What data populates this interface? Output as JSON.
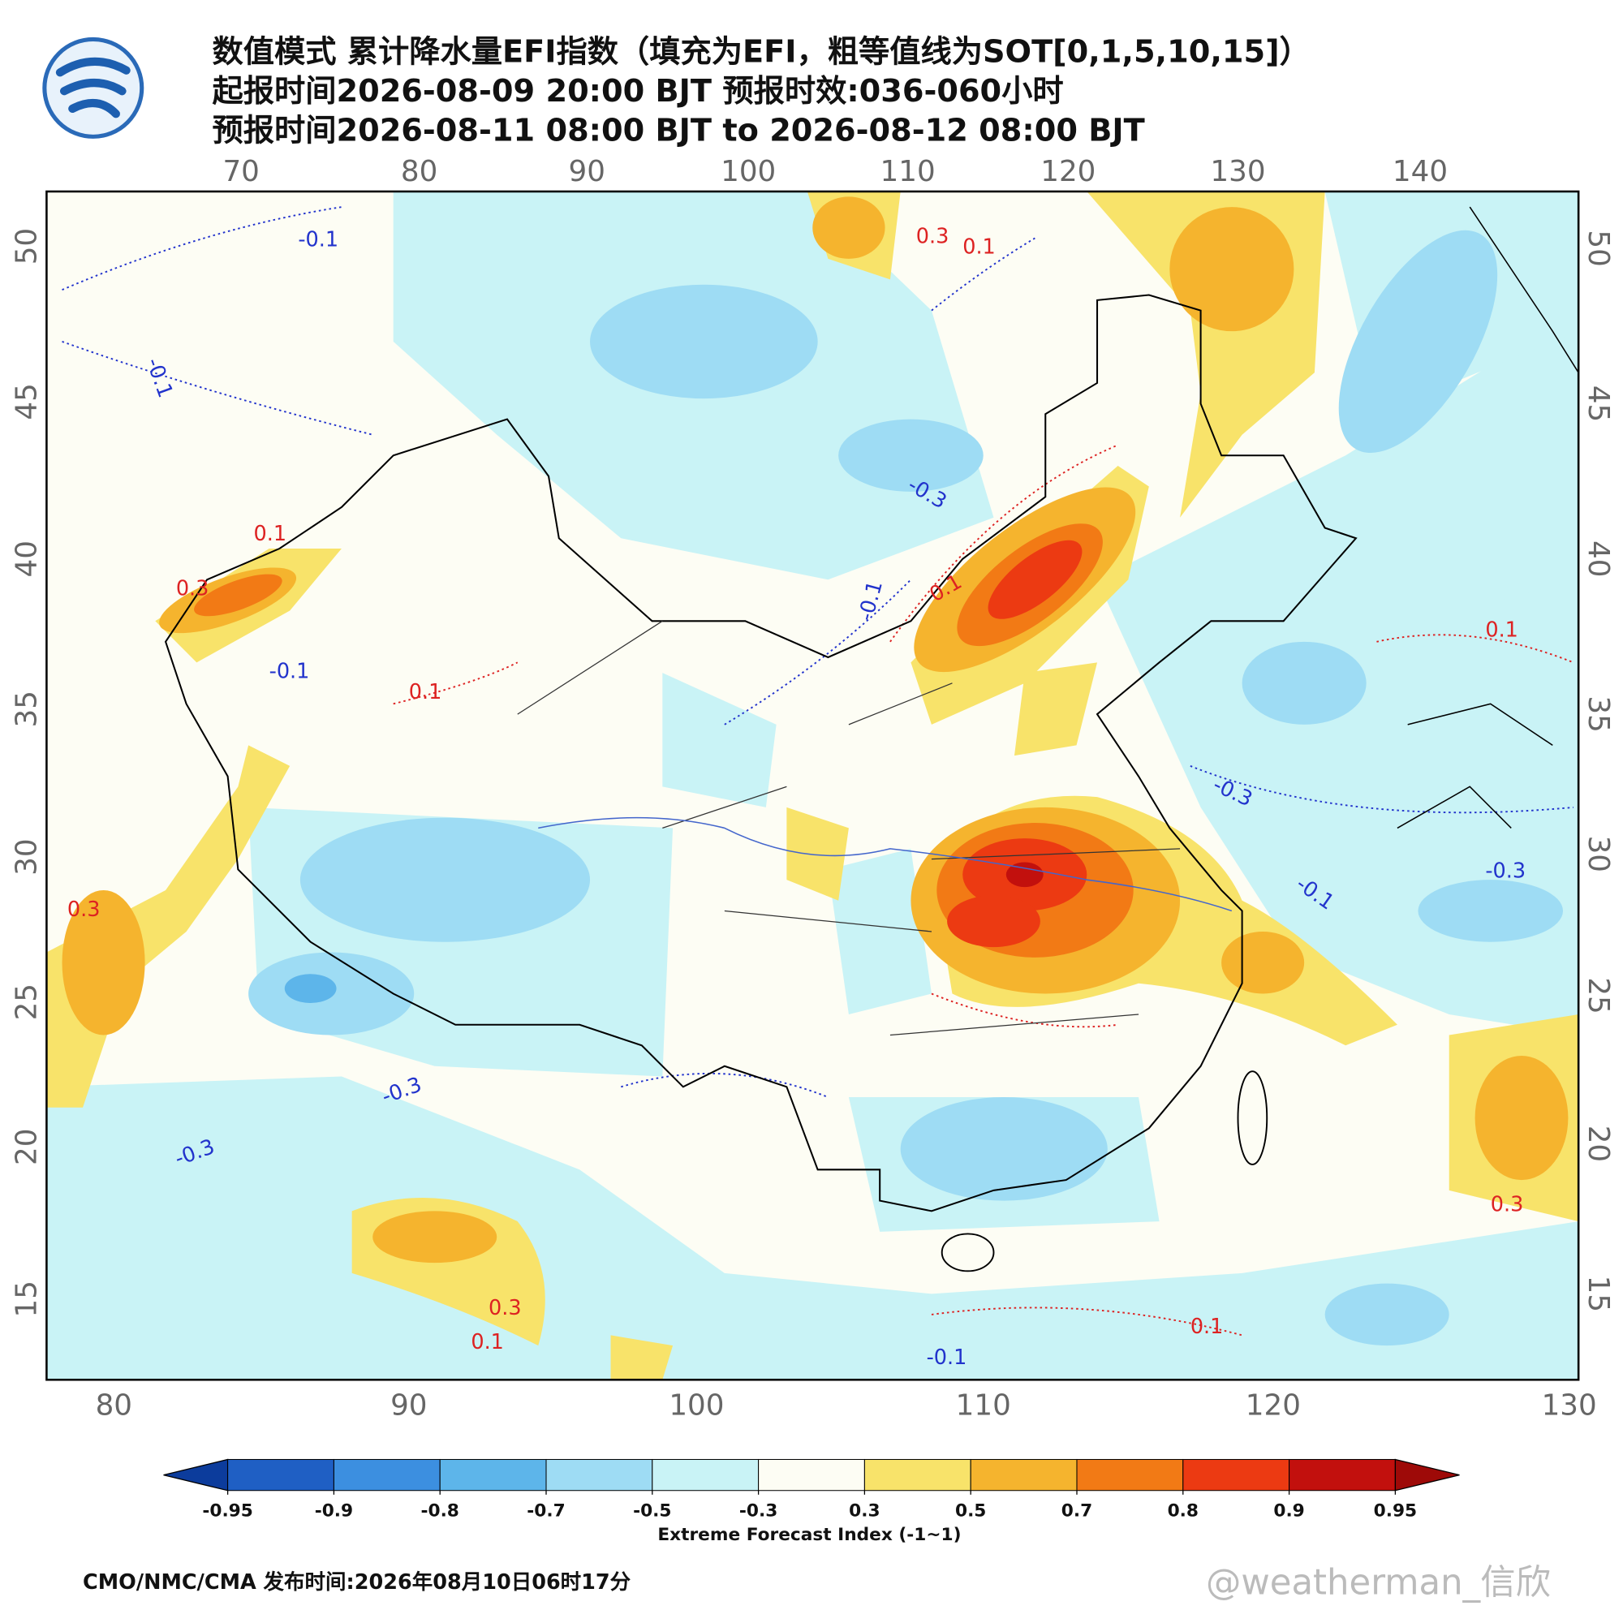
{
  "header": {
    "lines": [
      "数值模式 累计降水量EFI指数（填充为EFI，粗等值线为SOT[0,1,5,10,15]）",
      "起报时间2026-08-09 20:00 BJT 预报时效:036-060小时",
      "预报时间2026-08-11 08:00 BJT to 2026-08-12 08:00 BJT"
    ]
  },
  "map": {
    "top_lon_ticks": [
      70,
      80,
      90,
      100,
      110,
      120,
      130,
      140
    ],
    "bottom_lon_ticks": [
      80,
      90,
      100,
      110,
      120,
      130
    ],
    "left_lat_ticks": [
      50,
      45,
      40,
      35,
      30,
      25,
      20,
      15
    ],
    "right_lat_ticks": [
      50,
      45,
      40,
      35,
      30,
      25,
      20,
      15
    ],
    "contour_labels": [
      -0.1,
      0.3,
      0.1,
      -0.1,
      -0.3,
      0.1,
      -0.1,
      0.1,
      -0.1,
      0.3,
      -0.3,
      -0.3,
      -0.1,
      0.3,
      0.1,
      -0.3,
      -0.1,
      0.1,
      0.1,
      0.3,
      -0.3,
      0.1,
      0.3
    ]
  },
  "colorbar": {
    "levels": [
      -0.95,
      -0.9,
      -0.8,
      -0.7,
      -0.5,
      -0.3,
      0.3,
      0.5,
      0.7,
      0.8,
      0.9,
      0.95
    ],
    "colors": [
      "#0c3c9c",
      "#1f5fc4",
      "#3c8fe0",
      "#5db5ea",
      "#9edcf4",
      "#c9f3f6",
      "#fdfdf4",
      "#f8e36a",
      "#f5b42e",
      "#f27a15",
      "#ec3a12",
      "#c2100d",
      "#9e0a08"
    ],
    "title": "Extreme Forecast Index (-1~1)"
  },
  "footer": {
    "credit": "CMO/NMC/CMA 发布时间:2026年08月10日06时17分",
    "watermark": "@weatherman_信欣"
  }
}
